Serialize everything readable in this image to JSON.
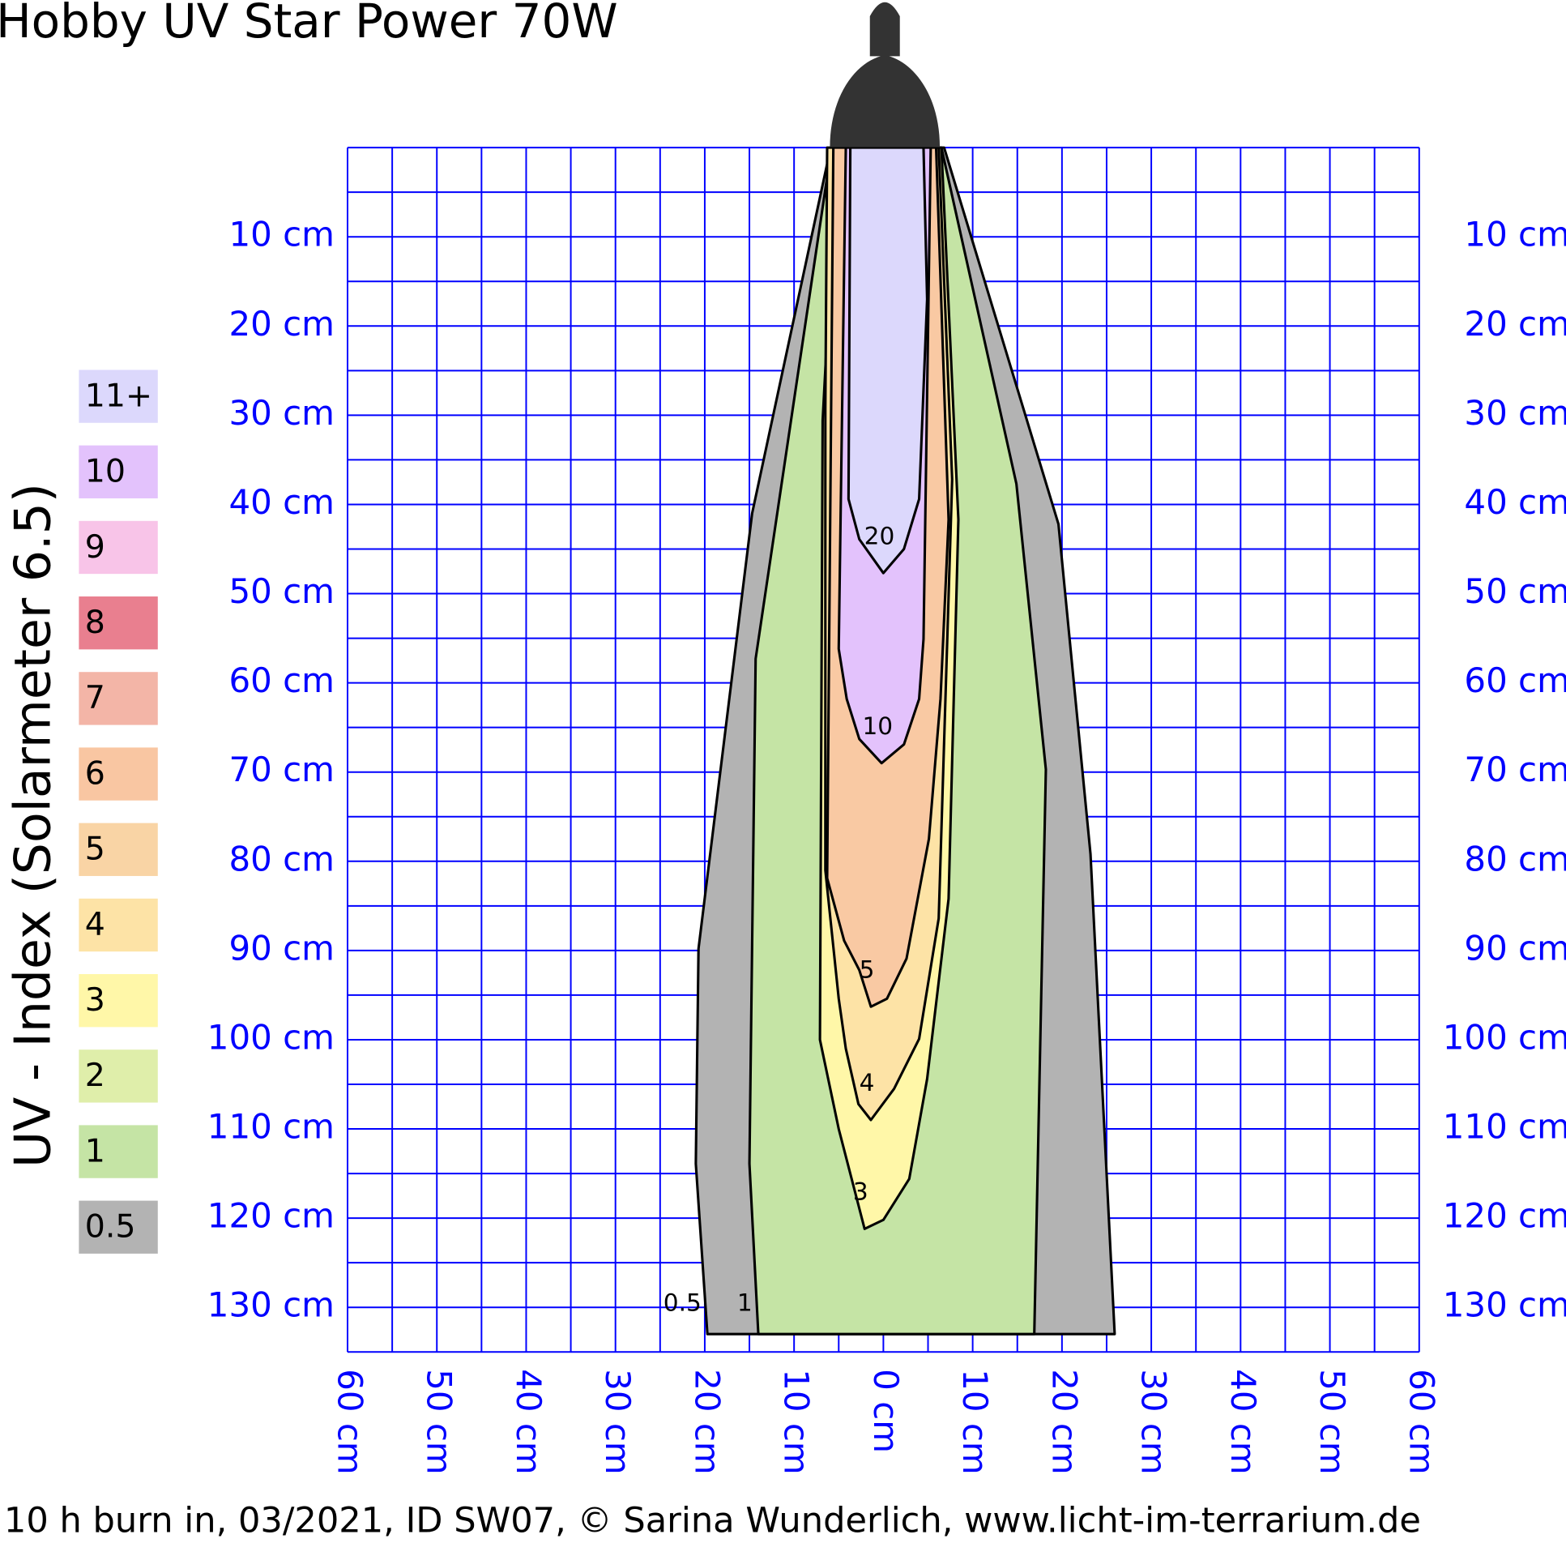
{
  "chart_data": {
    "type": "contour",
    "title": "Hobby UV Star Power 70W",
    "y_axis_title": "UV - Index (Solarmeter 6.5)",
    "footer": "10 h burn in, 03/2021, ID SW07, © Sarina Wunderlich, www.licht-im-terrarium.de",
    "xlim": [
      -60,
      60
    ],
    "ylim": [
      0,
      135
    ],
    "xticks": [
      {
        "value": -60,
        "label": "60 cm"
      },
      {
        "value": -50,
        "label": "50 cm"
      },
      {
        "value": -40,
        "label": "40 cm"
      },
      {
        "value": -30,
        "label": "30 cm"
      },
      {
        "value": -20,
        "label": "20 cm"
      },
      {
        "value": -10,
        "label": "10 cm"
      },
      {
        "value": 0,
        "label": "0 cm"
      },
      {
        "value": 10,
        "label": "10 cm"
      },
      {
        "value": 20,
        "label": "20 cm"
      },
      {
        "value": 30,
        "label": "30 cm"
      },
      {
        "value": 40,
        "label": "40 cm"
      },
      {
        "value": 50,
        "label": "50 cm"
      },
      {
        "value": 60,
        "label": "60 cm"
      }
    ],
    "yticks": [
      {
        "value": 10,
        "label": "10 cm"
      },
      {
        "value": 20,
        "label": "20 cm"
      },
      {
        "value": 30,
        "label": "30 cm"
      },
      {
        "value": 40,
        "label": "40 cm"
      },
      {
        "value": 50,
        "label": "50 cm"
      },
      {
        "value": 60,
        "label": "60 cm"
      },
      {
        "value": 70,
        "label": "70 cm"
      },
      {
        "value": 80,
        "label": "80 cm"
      },
      {
        "value": 90,
        "label": "90 cm"
      },
      {
        "value": 100,
        "label": "100 cm"
      },
      {
        "value": 110,
        "label": "110 cm"
      },
      {
        "value": 120,
        "label": "120 cm"
      },
      {
        "value": 130,
        "label": "130 cm"
      }
    ],
    "xgrid": [
      -60,
      -55,
      -50,
      -45,
      -40,
      -35,
      -30,
      -25,
      -20,
      -15,
      -10,
      -5,
      0,
      5,
      10,
      15,
      20,
      25,
      30,
      35,
      40,
      45,
      50,
      55,
      60
    ],
    "ygrid": [
      0,
      5,
      10,
      15,
      20,
      25,
      30,
      35,
      40,
      45,
      50,
      55,
      60,
      65,
      70,
      75,
      80,
      85,
      90,
      95,
      100,
      105,
      110,
      115,
      120,
      125,
      130,
      135
    ],
    "grid_color": "#0000ff",
    "legend": [
      {
        "label": "11+",
        "color": "#dcd8fc"
      },
      {
        "label": "10",
        "color": "#e3c2fc"
      },
      {
        "label": "9",
        "color": "#f8c4e8"
      },
      {
        "label": "8",
        "color": "#e97f8f"
      },
      {
        "label": "7",
        "color": "#f3b5a7"
      },
      {
        "label": "6",
        "color": "#f9c6a2"
      },
      {
        "label": "5",
        "color": "#f9d4a5"
      },
      {
        "label": "4",
        "color": "#fde3a6"
      },
      {
        "label": "3",
        "color": "#fff7a8"
      },
      {
        "label": "2",
        "color": "#dfeeaa"
      },
      {
        "label": "1",
        "color": "#c5e4a5"
      },
      {
        "label": "0.5",
        "color": "#b3b3b3"
      }
    ],
    "contours": [
      {
        "label": "0.5",
        "color": "#b3b3b3",
        "x": [
          -5.9,
          -14.7,
          -20.7,
          -21,
          -19.7,
          25.9,
          23.2,
          19.6,
          6.8
        ],
        "y": [
          0,
          41,
          89.8,
          113.9,
          133,
          133,
          79.2,
          42.2,
          0
        ]
      },
      {
        "label": "1",
        "color": "#c5e4a5",
        "x": [
          -5.8,
          -14.3,
          -15,
          -14,
          16.9,
          18.2,
          14.9,
          6.5
        ],
        "y": [
          0,
          57.3,
          113.9,
          133,
          133,
          69.7,
          37.7,
          0
        ]
      },
      {
        "label": "3",
        "color": "#fff7a8",
        "x": [
          -5.2,
          -6.8,
          -7.1,
          -5,
          -2.1,
          0,
          2.9,
          4.9,
          7.3,
          8.4,
          6.5
        ],
        "y": [
          0,
          30.6,
          100,
          110,
          121.2,
          120.2,
          115.6,
          104.4,
          84.2,
          41.7,
          0
        ]
      },
      {
        "label": "4",
        "color": "#fde3a6",
        "x": [
          -6.3,
          -6.5,
          -6.5,
          -5,
          -4.2,
          -2.8,
          -1.4,
          1.2,
          4,
          6.2,
          7.7,
          6.2
        ],
        "y": [
          0,
          29.3,
          81,
          95.4,
          101,
          107.2,
          109,
          105.5,
          99.9,
          86.4,
          37.2,
          0
        ]
      },
      {
        "label": "5",
        "color": "#f9c9a3",
        "x": [
          -5.6,
          -6.3,
          -4.4,
          -2.7,
          -1.4,
          0.4,
          2.6,
          5.1,
          6.4,
          7.3,
          5.9
        ],
        "y": [
          0,
          81.9,
          88.9,
          92.2,
          96.3,
          95.4,
          90.9,
          77.5,
          61.8,
          41.7,
          0
        ]
      },
      {
        "label": "10",
        "color": "#e3c2fc",
        "x": [
          -4.2,
          -5,
          -4.1,
          -2.7,
          -0.2,
          2.3,
          4,
          4.5,
          5.3
        ],
        "y": [
          0,
          56.2,
          61.8,
          66.3,
          69,
          66.9,
          61.8,
          55.1,
          0
        ]
      },
      {
        "label": "20",
        "color": "#dcd8fc",
        "x": [
          -3.7,
          -3.9,
          -2.7,
          0,
          2.3,
          4,
          4.9,
          4.5
        ],
        "y": [
          0,
          39.4,
          43.9,
          47.7,
          45,
          39.4,
          17,
          0
        ]
      }
    ]
  }
}
